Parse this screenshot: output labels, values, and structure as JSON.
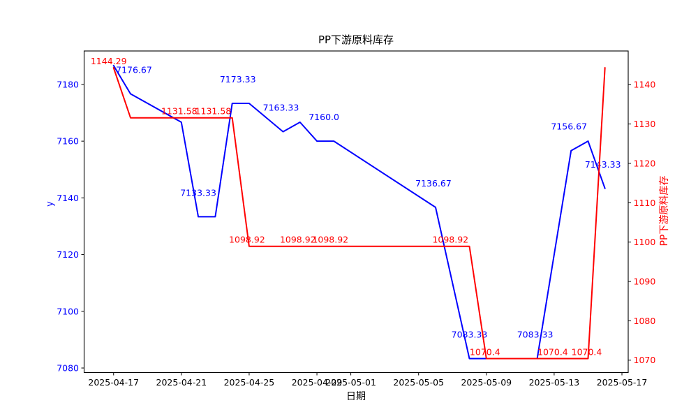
{
  "chart_data": {
    "type": "line",
    "title": "PP下游原料库存",
    "xlabel": "日期",
    "ylabel_left": "y",
    "ylabel_right": "PP下游原料库存",
    "x_origin": "2025-04-17",
    "x_ticks": [
      "2025-04-17",
      "2025-04-21",
      "2025-04-25",
      "2025-04-29",
      "2025-05-01",
      "2025-05-05",
      "2025-05-09",
      "2025-05-13",
      "2025-05-17"
    ],
    "y_ticks_left": [
      7080,
      7100,
      7120,
      7140,
      7160,
      7180
    ],
    "y_ticks_right": [
      1070,
      1080,
      1090,
      1100,
      1110,
      1120,
      1130,
      1140
    ],
    "xlim_days": [
      -1.74,
      30.37
    ],
    "ylim_left": [
      7078.4,
      7191.8
    ],
    "ylim_right": [
      1066.85,
      1148.55
    ],
    "grid": false,
    "legend": "none",
    "colors": {
      "left_axis_text": "#0000ff",
      "right_axis_text": "#ff0000",
      "axis_line": "#000000",
      "background": "#ffffff"
    },
    "series": [
      {
        "name": "y",
        "axis": "left",
        "color": "#0000ff",
        "label_dy": -30,
        "points": [
          {
            "date": "2025-04-17",
            "value": 7186.67
          },
          {
            "date": "2025-04-18",
            "value": 7176.67,
            "label": "7176.67",
            "dx": 5
          },
          {
            "date": "2025-04-21",
            "value": 7166.67
          },
          {
            "date": "2025-04-22",
            "value": 7133.33,
            "label": "7133.33"
          },
          {
            "date": "2025-04-23",
            "value": 7133.33
          },
          {
            "date": "2025-04-24",
            "value": 7173.33,
            "label": "7173.33",
            "dx": 8
          },
          {
            "date": "2025-04-25",
            "value": 7173.33
          },
          {
            "date": "2025-04-27",
            "value": 7163.33,
            "label": "7163.33",
            "dx": -3
          },
          {
            "date": "2025-04-28",
            "value": 7166.67
          },
          {
            "date": "2025-04-29",
            "value": 7160.0,
            "label": "7160.0",
            "dx": 10
          },
          {
            "date": "2025-04-30",
            "value": 7160.0
          },
          {
            "date": "2025-05-06",
            "value": 7136.67,
            "label": "7136.67",
            "dx": -3
          },
          {
            "date": "2025-05-08",
            "value": 7083.33,
            "label": "7083.33"
          },
          {
            "date": "2025-05-12",
            "value": 7083.33,
            "label": "7083.33",
            "dx": -3
          },
          {
            "date": "2025-05-13",
            "value": 7120.0
          },
          {
            "date": "2025-05-14",
            "value": 7156.67,
            "label": "7156.67",
            "dx": -3
          },
          {
            "date": "2025-05-15",
            "value": 7160.0
          },
          {
            "date": "2025-05-16",
            "value": 7143.33,
            "label": "7143.33",
            "dx": -3
          }
        ]
      },
      {
        "name": "PP下游原料库存",
        "axis": "right",
        "color": "#ff0000",
        "label_dy": -5,
        "points": [
          {
            "date": "2025-04-17",
            "value": 1144.29,
            "label": "1144.29",
            "dx": -7
          },
          {
            "date": "2025-04-18",
            "value": 1131.58
          },
          {
            "date": "2025-04-21",
            "value": 1131.58,
            "label": "1131.58",
            "dx": -3
          },
          {
            "date": "2025-04-23",
            "value": 1131.58,
            "label": "1131.58",
            "dx": -3
          },
          {
            "date": "2025-04-24",
            "value": 1131.58
          },
          {
            "date": "2025-04-25",
            "value": 1098.92,
            "label": "1098.92",
            "dx": -3
          },
          {
            "date": "2025-04-28",
            "value": 1098.92,
            "label": "1098.92",
            "dx": -3
          },
          {
            "date": "2025-04-30",
            "value": 1098.92,
            "label": "1098.92",
            "dx": -5
          },
          {
            "date": "2025-05-07",
            "value": 1098.92,
            "label": "1098.92",
            "dx": -3
          },
          {
            "date": "2025-05-08",
            "value": 1098.92
          },
          {
            "date": "2025-05-09",
            "value": 1070.4,
            "label": "1070.4",
            "dx": -2
          },
          {
            "date": "2025-05-13",
            "value": 1070.4,
            "label": "1070.4",
            "dx": -2
          },
          {
            "date": "2025-05-15",
            "value": 1070.4,
            "label": "1070.4",
            "dx": -2
          },
          {
            "date": "2025-05-16",
            "value": 1144.29
          }
        ]
      }
    ]
  }
}
